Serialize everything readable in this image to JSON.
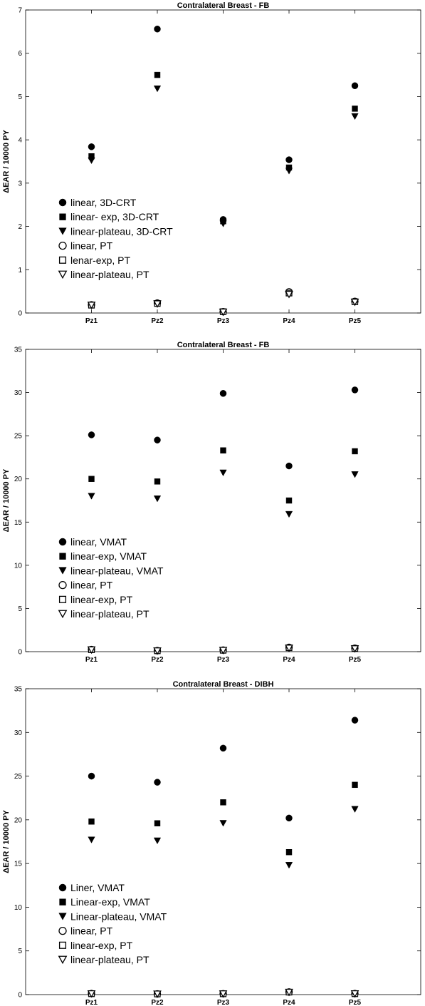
{
  "chart_data": [
    {
      "type": "scatter",
      "title": "Contralateral Breast - FB",
      "xlabel": "",
      "ylabel": "ΔEAR / 10000 PY",
      "categories": [
        "Pz1",
        "Pz2",
        "Pz3",
        "Pz4",
        "Pz5"
      ],
      "ylim": [
        0,
        7
      ],
      "yticks": [
        0,
        1,
        2,
        3,
        4,
        5,
        6,
        7
      ],
      "grid": false,
      "legend": "middle-left",
      "series": [
        {
          "name": "linear, 3D-CRT",
          "marker": "circle-filled",
          "values": [
            3.84,
            6.56,
            2.16,
            3.54,
            5.25
          ]
        },
        {
          "name": "linear- exp, 3D-CRT",
          "marker": "square-filled",
          "values": [
            3.62,
            5.5,
            2.12,
            3.36,
            4.72
          ]
        },
        {
          "name": "linear-plateau, 3D-CRT",
          "marker": "triangle-down-filled",
          "values": [
            3.52,
            5.18,
            2.06,
            3.28,
            4.54
          ]
        },
        {
          "name": "linear, PT",
          "marker": "circle-open",
          "values": [
            0.19,
            0.23,
            0.03,
            0.49,
            0.27
          ]
        },
        {
          "name": "lenar-exp, PT",
          "marker": "square-open",
          "values": [
            0.18,
            0.22,
            0.03,
            0.46,
            0.26
          ]
        },
        {
          "name": "linear-plateau, PT",
          "marker": "triangle-down-open",
          "values": [
            0.18,
            0.21,
            0.02,
            0.43,
            0.25
          ]
        }
      ]
    },
    {
      "type": "scatter",
      "title": "Contralateral Breast - FB",
      "xlabel": "",
      "ylabel": "ΔEAR / 10000 PY",
      "categories": [
        "Pz1",
        "Pz2",
        "Pz3",
        "Pz4",
        "Pz5"
      ],
      "ylim": [
        0,
        35
      ],
      "yticks": [
        0,
        5,
        10,
        15,
        20,
        25,
        30,
        35
      ],
      "grid": false,
      "legend": "middle-left",
      "series": [
        {
          "name": "linear, VMAT",
          "marker": "circle-filled",
          "values": [
            25.1,
            24.5,
            29.9,
            21.5,
            30.3
          ]
        },
        {
          "name": "linear-exp, VMAT",
          "marker": "square-filled",
          "values": [
            20.0,
            19.7,
            23.3,
            17.5,
            23.2
          ]
        },
        {
          "name": "linear-plateau, VMAT",
          "marker": "triangle-down-filled",
          "values": [
            18.0,
            17.7,
            20.7,
            15.9,
            20.5
          ]
        },
        {
          "name": "linear, PT",
          "marker": "circle-open",
          "values": [
            0.25,
            0.12,
            0.18,
            0.5,
            0.4
          ]
        },
        {
          "name": "linear-exp, PT",
          "marker": "square-open",
          "values": [
            0.22,
            0.1,
            0.16,
            0.45,
            0.37
          ]
        },
        {
          "name": "linear-plateau, PT",
          "marker": "triangle-down-open",
          "values": [
            0.2,
            0.08,
            0.14,
            0.4,
            0.33
          ]
        }
      ]
    },
    {
      "type": "scatter",
      "title": "Contralateral Breast - DIBH",
      "xlabel": "",
      "ylabel": "ΔEAR / 10000 PY",
      "categories": [
        "Pz1",
        "Pz2",
        "Pz3",
        "Pz4",
        "Pz5"
      ],
      "ylim": [
        0,
        35
      ],
      "yticks": [
        0,
        5,
        10,
        15,
        20,
        25,
        30,
        35
      ],
      "grid": false,
      "legend": "middle-left",
      "series": [
        {
          "name": "Liner, VMAT",
          "marker": "circle-filled",
          "values": [
            25.0,
            24.3,
            28.2,
            20.2,
            31.4
          ]
        },
        {
          "name": "Linear-exp, VMAT",
          "marker": "square-filled",
          "values": [
            19.8,
            19.6,
            22.0,
            16.3,
            24.0
          ]
        },
        {
          "name": "Linear-plateau, VMAT",
          "marker": "triangle-down-filled",
          "values": [
            17.7,
            17.6,
            19.6,
            14.8,
            21.2
          ]
        },
        {
          "name": "linear, PT",
          "marker": "circle-open",
          "values": [
            0.12,
            0.08,
            0.1,
            0.3,
            0.12
          ]
        },
        {
          "name": "linear-exp, PT",
          "marker": "square-open",
          "values": [
            0.1,
            0.07,
            0.09,
            0.28,
            0.1
          ]
        },
        {
          "name": "linear-plateau, PT",
          "marker": "triangle-down-open",
          "values": [
            0.09,
            0.06,
            0.08,
            0.26,
            0.09
          ]
        }
      ]
    }
  ]
}
